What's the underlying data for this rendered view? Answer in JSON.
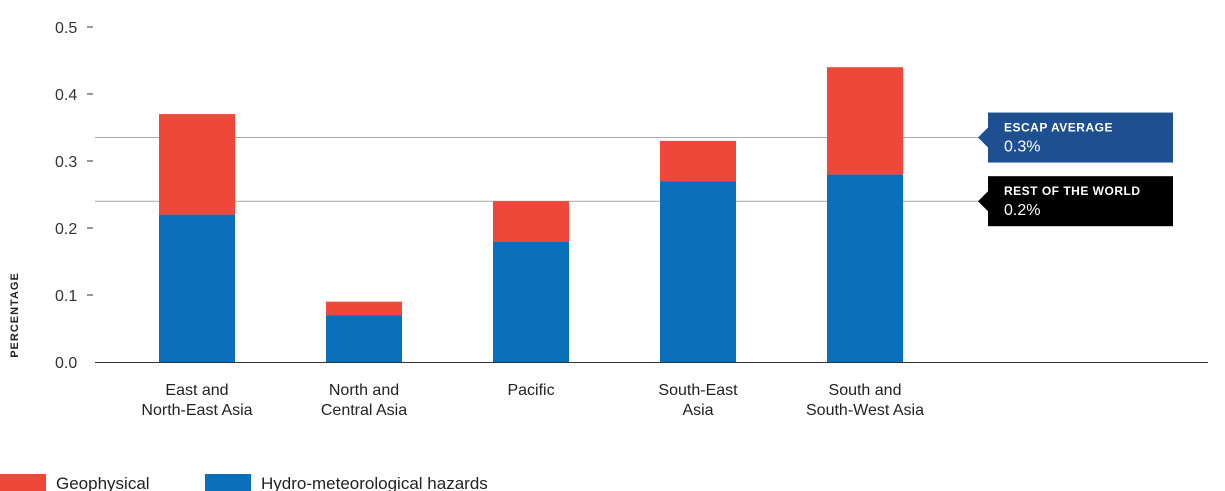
{
  "colors": {
    "geophysical": "#ef473a",
    "hydro": "#0a6fba",
    "escap_box": "#1d4f91",
    "rest_box": "#000000",
    "ref_line": "#a9a9a9",
    "axis": "#333333"
  },
  "chart_data": {
    "type": "bar",
    "stacked": true,
    "title": "",
    "xlabel": "",
    "ylabel": "PERCENTAGE",
    "ylim": [
      0,
      0.5
    ],
    "yticks": [
      "0.0",
      "0.1",
      "0.2",
      "0.3",
      "0.4",
      "0.5"
    ],
    "categories": [
      [
        "East and",
        "North-East Asia"
      ],
      [
        "North and",
        "Central Asia"
      ],
      [
        "Pacific"
      ],
      [
        "South-East",
        "Asia"
      ],
      [
        "South and",
        "South-West Asia"
      ]
    ],
    "series": [
      {
        "name": "Hydro-meteorological hazards",
        "color": "#0a6fba",
        "values": [
          0.22,
          0.07,
          0.18,
          0.27,
          0.28
        ]
      },
      {
        "name": "Geophysical",
        "color": "#ef473a",
        "values": [
          0.15,
          0.02,
          0.06,
          0.06,
          0.16
        ]
      }
    ],
    "reference_lines": [
      {
        "label": "ESCAP AVERAGE",
        "value_label": "0.3%",
        "y": 0.335,
        "color": "#1d4f91"
      },
      {
        "label": "REST OF THE WORLD",
        "value_label": "0.2%",
        "y": 0.24,
        "color": "#000000"
      }
    ],
    "legend": [
      {
        "name": "Geophysical",
        "color": "#ef473a"
      },
      {
        "name": "Hydro-meteorological hazards",
        "color": "#0a6fba"
      }
    ],
    "legend_position": "bottom-left",
    "grid": false
  }
}
